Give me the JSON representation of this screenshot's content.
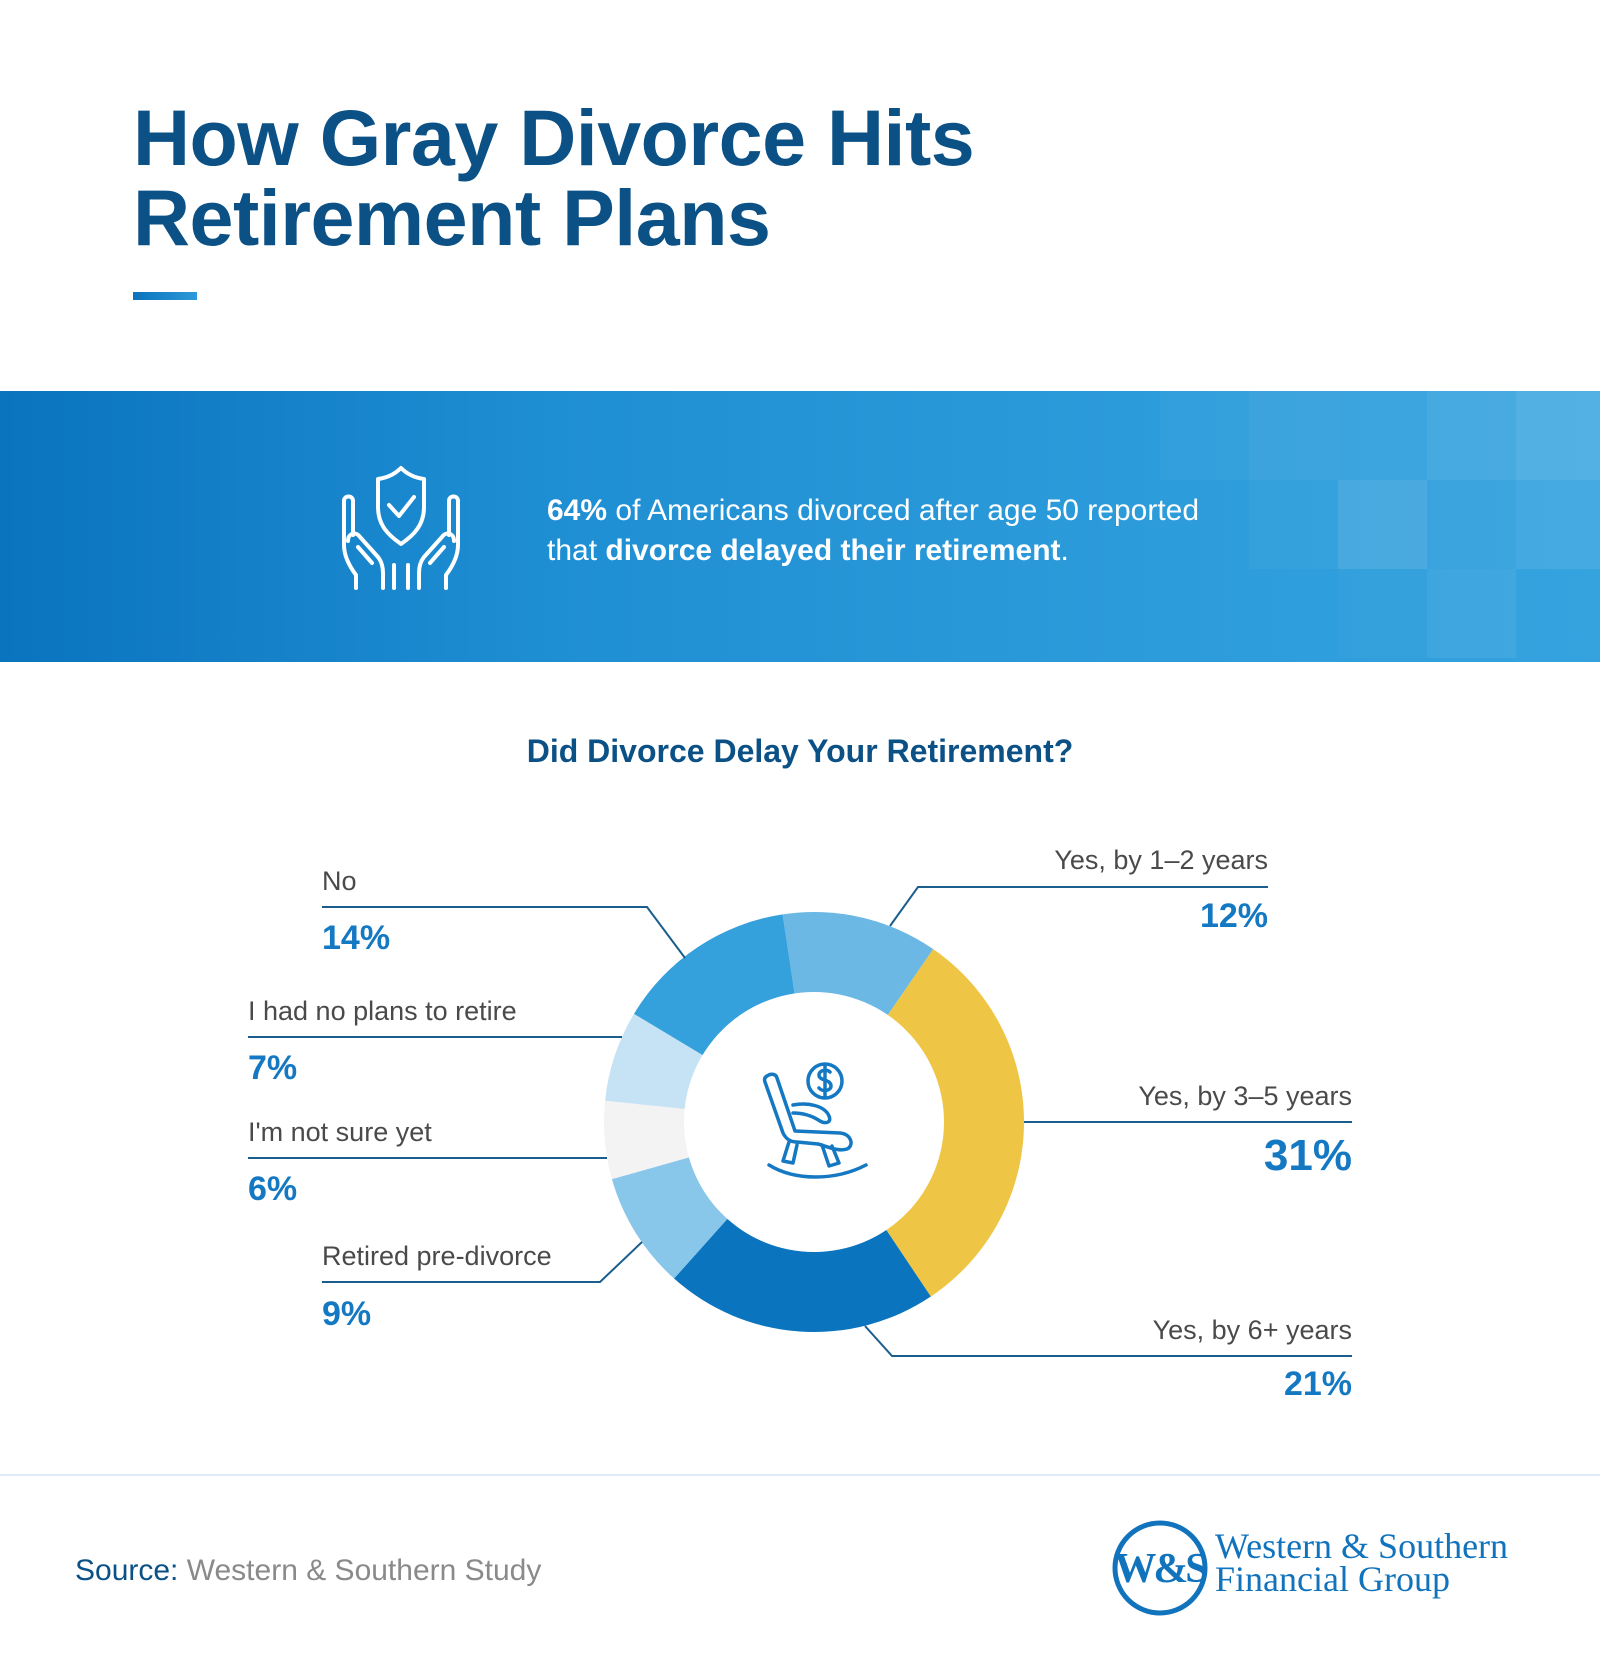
{
  "header": {
    "title_line1": "How Gray Divorce Hits",
    "title_line2": "Retirement Plans"
  },
  "banner": {
    "icon": "hands-shield-check-icon",
    "stat": "64%",
    "text_part1": " of Americans divorced after age 50 reported",
    "text_part2": "that ",
    "emphasis": "divorce delayed their retirement",
    "text_end": "."
  },
  "chart": {
    "center_icon": "rocking-chair-dollar-icon"
  },
  "chart_data": {
    "type": "pie",
    "subtype": "donut",
    "title": "Did Divorce Delay Your Retirement?",
    "categories": [
      "Yes, by 1–2 years",
      "Yes, by 3–5 years",
      "Yes, by 6+ years",
      "Retired pre-divorce",
      "I'm not sure yet",
      "I had no plans to retire",
      "No"
    ],
    "values": [
      12,
      31,
      21,
      9,
      6,
      7,
      14
    ],
    "value_labels": [
      "12%",
      "31%",
      "21%",
      "9%",
      "6%",
      "7%",
      "14%"
    ],
    "colors": [
      "#6cb8e4",
      "#efc545",
      "#0a74bf",
      "#88c6ea",
      "#f3f3f3",
      "#c6e3f6",
      "#34a0dc"
    ],
    "unit": "%",
    "legend_position": "callout labels"
  },
  "footer": {
    "source_label": "Source:",
    "source_value": " Western & Southern Study",
    "logo_mark": "W&S",
    "logo_line1": "Western & Southern",
    "logo_line2": "Financial Group"
  },
  "colors": {
    "title": "#0b5186",
    "accent": "#1478c2",
    "banner_start": "#0a74bf",
    "banner_end": "#33a2de",
    "label_text": "#4a4a4a",
    "leader_line": "#1b5e8e",
    "logo": "#1273bd"
  }
}
